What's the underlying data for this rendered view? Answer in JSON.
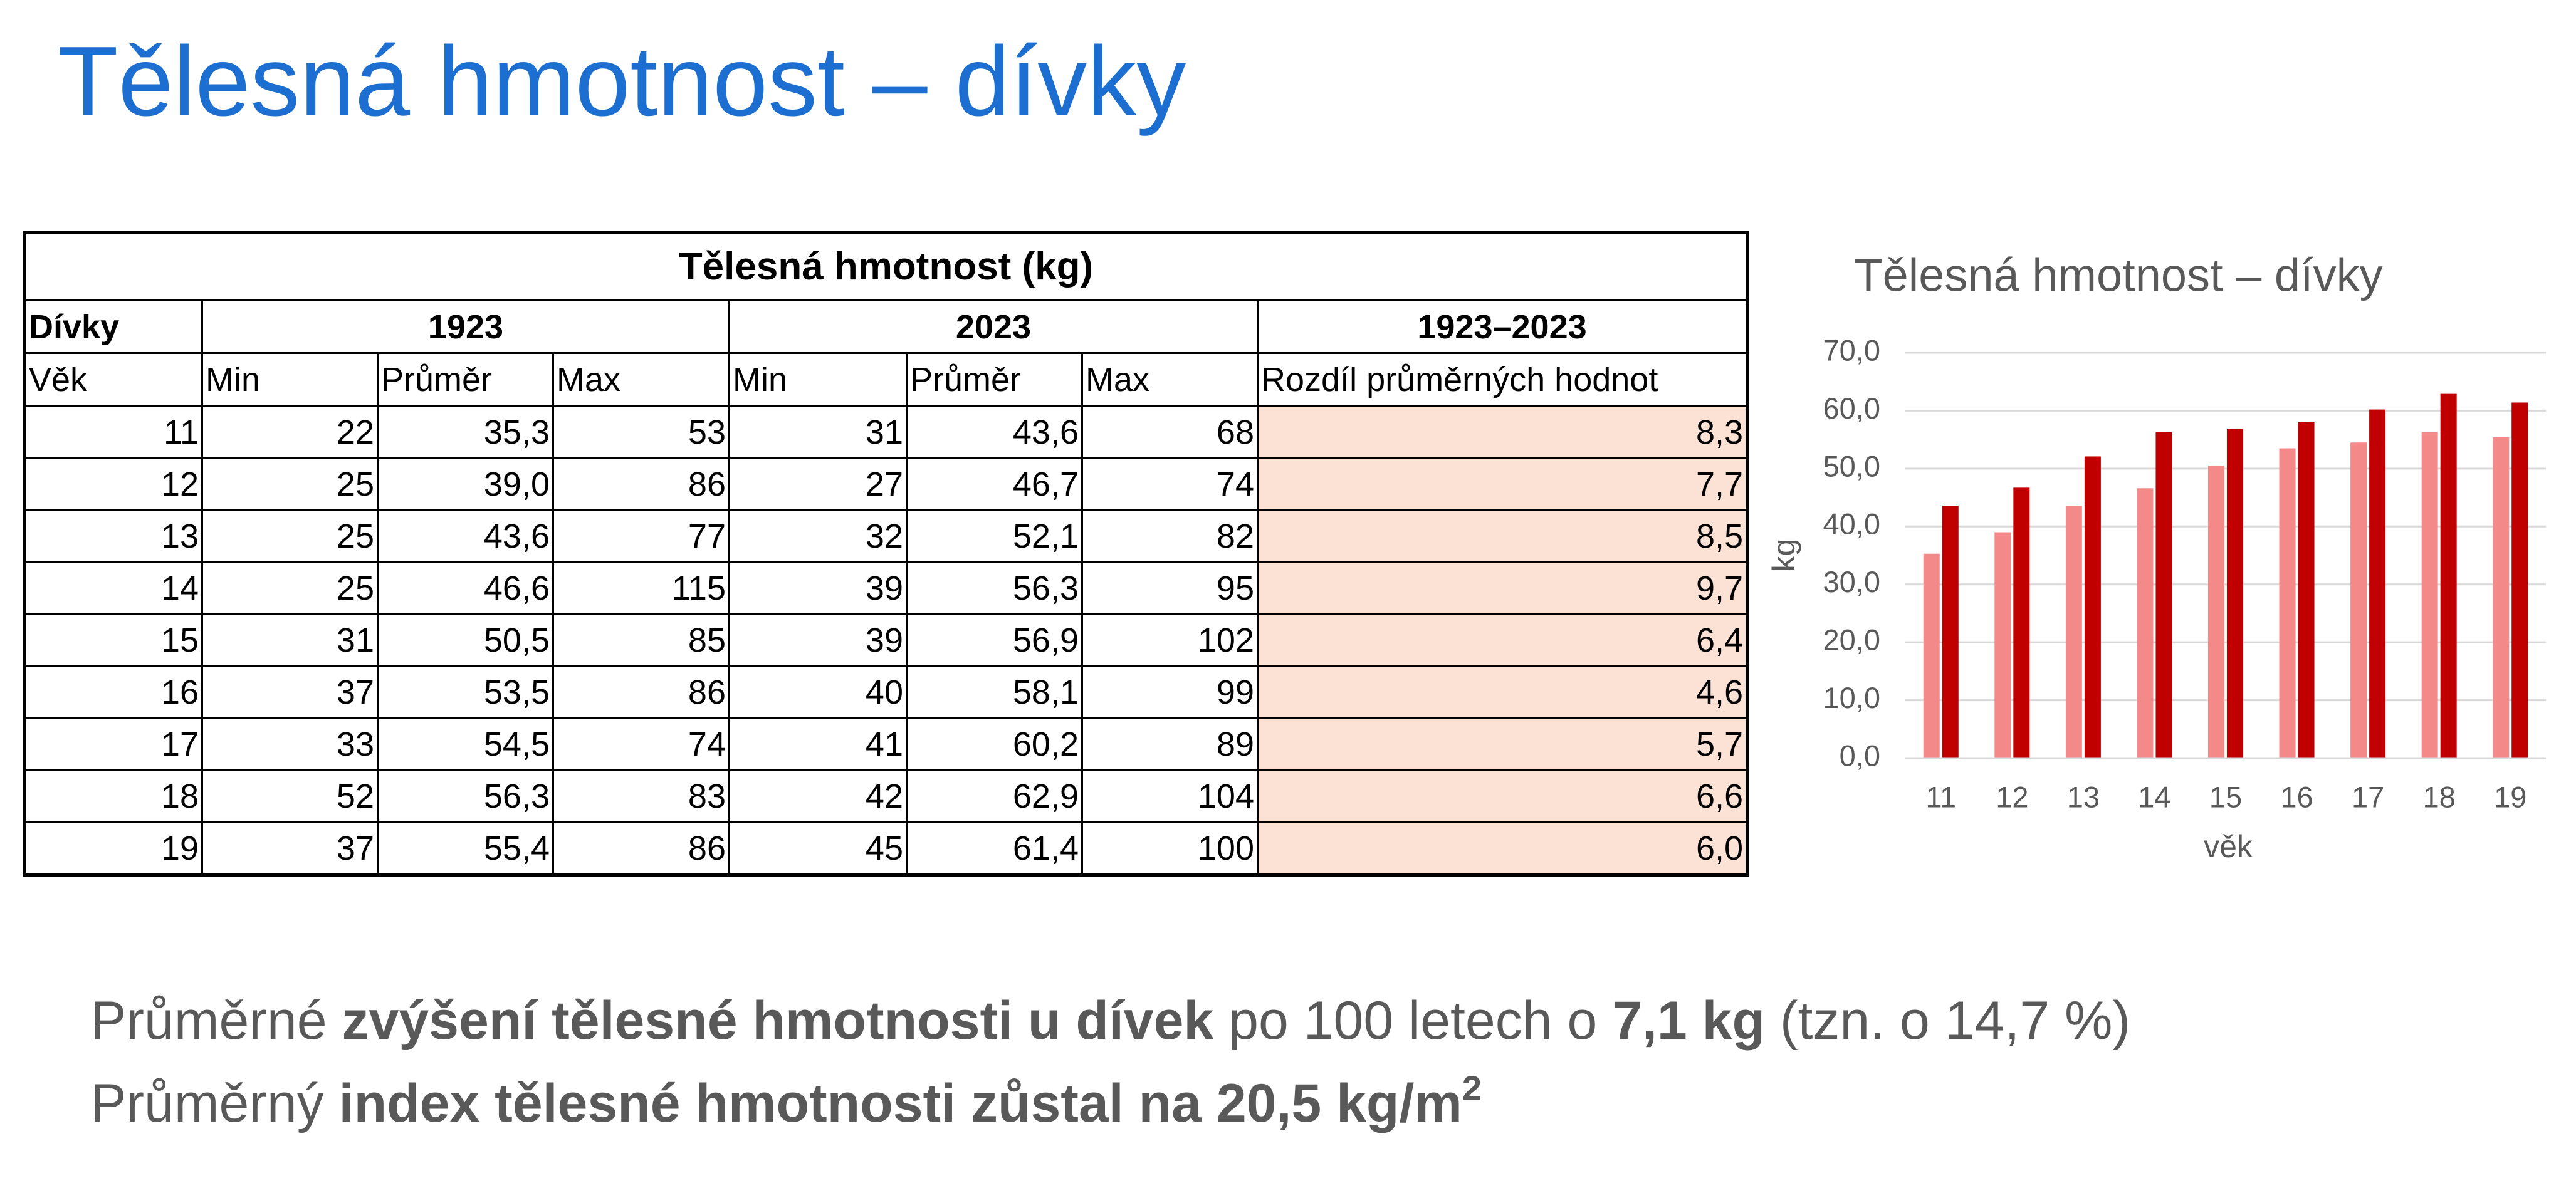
{
  "title": "Tělesná hmotnost – dívky",
  "table": {
    "title": "Tělesná hmotnost (kg)",
    "groups": [
      "Dívky",
      "1923",
      "2023",
      "1923–2023"
    ],
    "columns": [
      "Věk",
      "Min",
      "Průměr",
      "Max",
      "Min",
      "Průměr",
      "Max",
      "Rozdíl průměrných hodnot"
    ],
    "rows": [
      [
        "11",
        "22",
        "35,3",
        "53",
        "31",
        "43,6",
        "68",
        "8,3"
      ],
      [
        "12",
        "25",
        "39,0",
        "86",
        "27",
        "46,7",
        "74",
        "7,7"
      ],
      [
        "13",
        "25",
        "43,6",
        "77",
        "32",
        "52,1",
        "82",
        "8,5"
      ],
      [
        "14",
        "25",
        "46,6",
        "115",
        "39",
        "56,3",
        "95",
        "9,7"
      ],
      [
        "15",
        "31",
        "50,5",
        "85",
        "39",
        "56,9",
        "102",
        "6,4"
      ],
      [
        "16",
        "37",
        "53,5",
        "86",
        "40",
        "58,1",
        "99",
        "4,6"
      ],
      [
        "17",
        "33",
        "54,5",
        "74",
        "41",
        "60,2",
        "89",
        "5,7"
      ],
      [
        "18",
        "52",
        "56,3",
        "83",
        "42",
        "62,9",
        "104",
        "6,6"
      ],
      [
        "19",
        "37",
        "55,4",
        "86",
        "45",
        "61,4",
        "100",
        "6,0"
      ]
    ]
  },
  "chart_data": {
    "type": "bar",
    "title": "Tělesná hmotnost – dívky",
    "x_label": "věk",
    "y_label": "kg",
    "categories": [
      "11",
      "12",
      "13",
      "14",
      "15",
      "16",
      "17",
      "18",
      "19"
    ],
    "series": [
      {
        "color": "#f4898a",
        "values": [
          35.3,
          39.0,
          43.6,
          46.6,
          50.5,
          53.5,
          54.5,
          56.3,
          55.4
        ]
      },
      {
        "color": "#c00000",
        "values": [
          43.6,
          46.7,
          52.1,
          56.3,
          56.9,
          58.1,
          60.2,
          62.9,
          61.4
        ]
      }
    ],
    "ylim": [
      0,
      70
    ],
    "yticks": [
      {
        "value": 0,
        "label": "0,0"
      },
      {
        "value": 10,
        "label": "10,0"
      },
      {
        "value": 20,
        "label": "20,0"
      },
      {
        "value": 30,
        "label": "30,0"
      },
      {
        "value": 40,
        "label": "40,0"
      },
      {
        "value": 50,
        "label": "50,0"
      },
      {
        "value": 60,
        "label": "60,0"
      },
      {
        "value": 70,
        "label": "70,0"
      }
    ],
    "grid": true
  },
  "notes": [
    [
      "Průměrné ",
      "zvýšení tělesné hmotnosti u dívek",
      " po 100 letech o ",
      "7,1 kg",
      " (tzn. o 14,7 %)"
    ],
    [
      "Průměrný ",
      "index tělesné hmotnosti zůstal na 20,5 kg/m",
      "2"
    ]
  ]
}
